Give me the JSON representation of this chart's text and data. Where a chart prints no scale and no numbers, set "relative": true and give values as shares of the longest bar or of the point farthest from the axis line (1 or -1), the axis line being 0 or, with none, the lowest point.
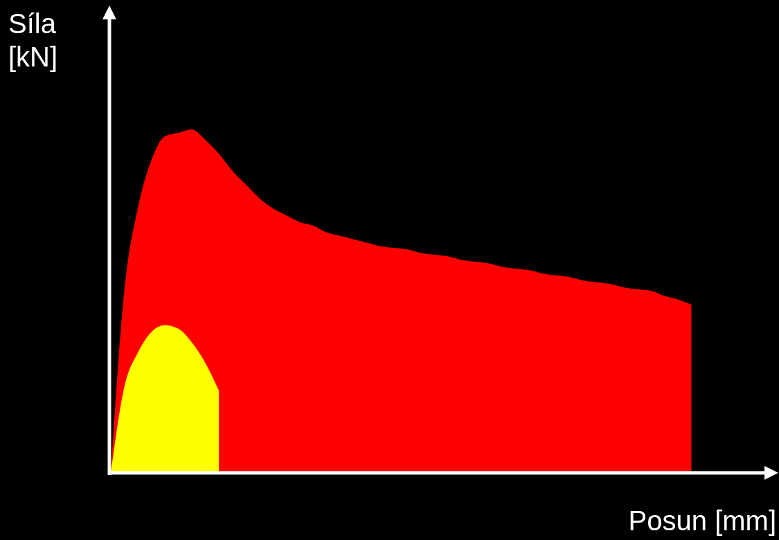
{
  "chart_data": {
    "type": "area",
    "relative": true,
    "xlabel": "Posun [mm]",
    "ylabel": "Síla [kN]",
    "categories": [
      null,
      null,
      null,
      null,
      null,
      null,
      null,
      null,
      null,
      null,
      null,
      null,
      null,
      null,
      null,
      null,
      null,
      null,
      null,
      null,
      null,
      null,
      null,
      null,
      null,
      null,
      null,
      null,
      null,
      null,
      null,
      null,
      null,
      null,
      null,
      null,
      null,
      null,
      null,
      null,
      null,
      null,
      null,
      null
    ],
    "series": [
      {
        "color": "#ff0000",
        "values": [
          0,
          0.53,
          0.77,
          0.91,
          0.98,
          0.99,
          1,
          0.97,
          0.93,
          0.88,
          0.84,
          0.8,
          0.77,
          0.75,
          0.73,
          0.72,
          0.7,
          0.69,
          0.68,
          0.67,
          0.66,
          0.655,
          0.65,
          0.64,
          0.635,
          0.63,
          0.62,
          0.615,
          0.61,
          0.6,
          0.595,
          0.59,
          0.58,
          0.575,
          0.57,
          0.56,
          0.555,
          0.55,
          0.54,
          0.535,
          0.53,
          0.515,
          0.505,
          0.49
        ]
      },
      {
        "color": "#ffff00",
        "values": [
          0,
          0.25,
          0.35,
          0.41,
          0.43,
          0.42,
          0.38,
          0.32,
          0.24,
          null,
          null,
          null,
          null,
          null,
          null,
          null,
          null,
          null,
          null,
          null,
          null,
          null,
          null,
          null,
          null,
          null,
          null,
          null,
          null,
          null,
          null,
          null,
          null,
          null,
          null,
          null,
          null,
          null,
          null,
          null,
          null,
          null,
          null,
          null
        ]
      }
    ]
  }
}
